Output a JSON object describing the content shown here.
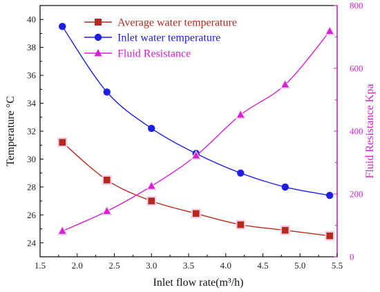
{
  "chart_data": {
    "type": "line",
    "xlabel": "Inlet flow rate(m³/h)",
    "ylabel_left": "Temperature °C",
    "ylabel_right": "Fluid Resistance Kpa",
    "xlim": [
      1.5,
      5.5
    ],
    "ylim_left": [
      23,
      41
    ],
    "ylim_right": [
      0,
      800
    ],
    "xticks": [
      "1.5",
      "2.0",
      "2.5",
      "3.0",
      "3.5",
      "4.0",
      "4.5",
      "5.0",
      "5.5"
    ],
    "yticks_left": [
      "24",
      "26",
      "28",
      "30",
      "32",
      "34",
      "36",
      "38",
      "40"
    ],
    "yticks_right": [
      "0",
      "200",
      "400",
      "600",
      "800"
    ],
    "x": [
      1.8,
      2.4,
      3.0,
      3.6,
      4.2,
      4.8,
      5.4
    ],
    "series": [
      {
        "name": "Average water temperature",
        "axis": "left",
        "marker": "square",
        "color": "#b52a1c",
        "values": [
          31.2,
          28.5,
          27.0,
          26.1,
          25.3,
          24.9,
          24.5
        ]
      },
      {
        "name": "Inlet water temperature",
        "axis": "left",
        "marker": "circle",
        "color": "#1e1ee6",
        "values": [
          39.5,
          34.8,
          32.2,
          30.4,
          29.0,
          28.0,
          27.4
        ]
      },
      {
        "name": "Fluid Resistance",
        "axis": "right",
        "marker": "triangle",
        "color": "#d41fd4",
        "values": [
          82,
          145,
          225,
          322,
          452,
          548,
          718
        ]
      }
    ],
    "legend_position": "top-left",
    "grid": false
  }
}
